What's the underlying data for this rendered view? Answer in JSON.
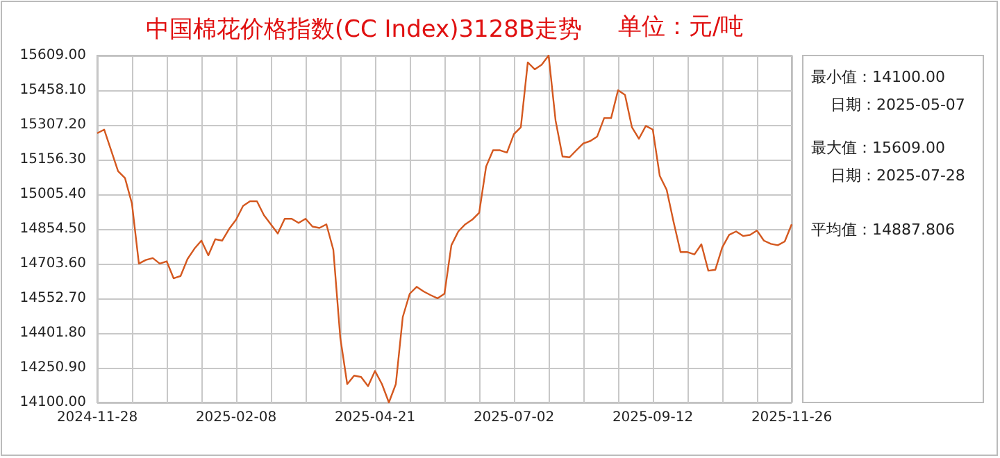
{
  "chart_data": {
    "type": "line",
    "title": "中国棉花价格指数(CC Index)3128B走势",
    "subtitle": "单位：元/吨",
    "categories": [
      "2024-11-28",
      null,
      null,
      null,
      null,
      null,
      null,
      null,
      null,
      null,
      null,
      null,
      null,
      null,
      null,
      null,
      null,
      null,
      null,
      null,
      "2025-02-08",
      null,
      null,
      null,
      null,
      null,
      null,
      null,
      null,
      null,
      null,
      null,
      null,
      null,
      null,
      null,
      null,
      null,
      null,
      null,
      "2025-04-21",
      null,
      null,
      null,
      null,
      null,
      null,
      null,
      null,
      null,
      null,
      null,
      null,
      null,
      null,
      null,
      null,
      null,
      null,
      null,
      "2025-07-02",
      null,
      null,
      null,
      null,
      null,
      null,
      null,
      null,
      null,
      null,
      null,
      null,
      null,
      null,
      null,
      null,
      null,
      null,
      null,
      "2025-09-12",
      null,
      null,
      null,
      null,
      null,
      null,
      null,
      null,
      null,
      null,
      null,
      null,
      null,
      null,
      null,
      null,
      null,
      null,
      null,
      "2025-11-26"
    ],
    "series": [
      {
        "color": "#d4581f",
        "values": [
          15271,
          15287,
          15197,
          15106,
          15076,
          14965,
          14704,
          14720,
          14728,
          14704,
          14714,
          14640,
          14650,
          14724,
          14769,
          14804,
          14740,
          14810,
          14804,
          14855,
          14895,
          14955,
          14975,
          14975,
          14915,
          14875,
          14835,
          14899,
          14899,
          14881,
          14899,
          14865,
          14859,
          14875,
          14764,
          14382,
          14180,
          14217,
          14211,
          14171,
          14237,
          14180,
          14100,
          14180,
          14472,
          14573,
          14603,
          14583,
          14567,
          14553,
          14573,
          14784,
          14844,
          14875,
          14895,
          14925,
          15126,
          15197,
          15197,
          15187,
          15267,
          15297,
          15579,
          15549,
          15569,
          15609,
          15327,
          15170,
          15166,
          15197,
          15227,
          15237,
          15257,
          15337,
          15337,
          15458,
          15438,
          15297,
          15247,
          15303,
          15287,
          15086,
          15025,
          14885,
          14754,
          14754,
          14744,
          14788,
          14673,
          14677,
          14774,
          14829,
          14844,
          14824,
          14829,
          14848,
          14804,
          14790,
          14784,
          14800,
          14875
        ]
      }
    ],
    "ylim": [
      14100,
      15609
    ],
    "yticks": [
      {
        "value": 14100,
        "label": "14100.00"
      },
      {
        "value": 14250.9,
        "label": "14250.90"
      },
      {
        "value": 14401.8,
        "label": "14401.80"
      },
      {
        "value": 14552.7,
        "label": "14552.70"
      },
      {
        "value": 14703.6,
        "label": "14703.60"
      },
      {
        "value": 14854.5,
        "label": "14854.50"
      },
      {
        "value": 15005.4,
        "label": "15005.40"
      },
      {
        "value": 15156.3,
        "label": "15156.30"
      },
      {
        "value": 15307.2,
        "label": "15307.20"
      },
      {
        "value": 15458.1,
        "label": "15458.10"
      },
      {
        "value": 15609,
        "label": "15609.00"
      }
    ],
    "grid": true,
    "annotations": [
      "最小值：14100.00",
      "日期：2025-05-07",
      "最大值：15609.00",
      "日期：2025-07-28",
      "平均值：14887.806"
    ]
  }
}
